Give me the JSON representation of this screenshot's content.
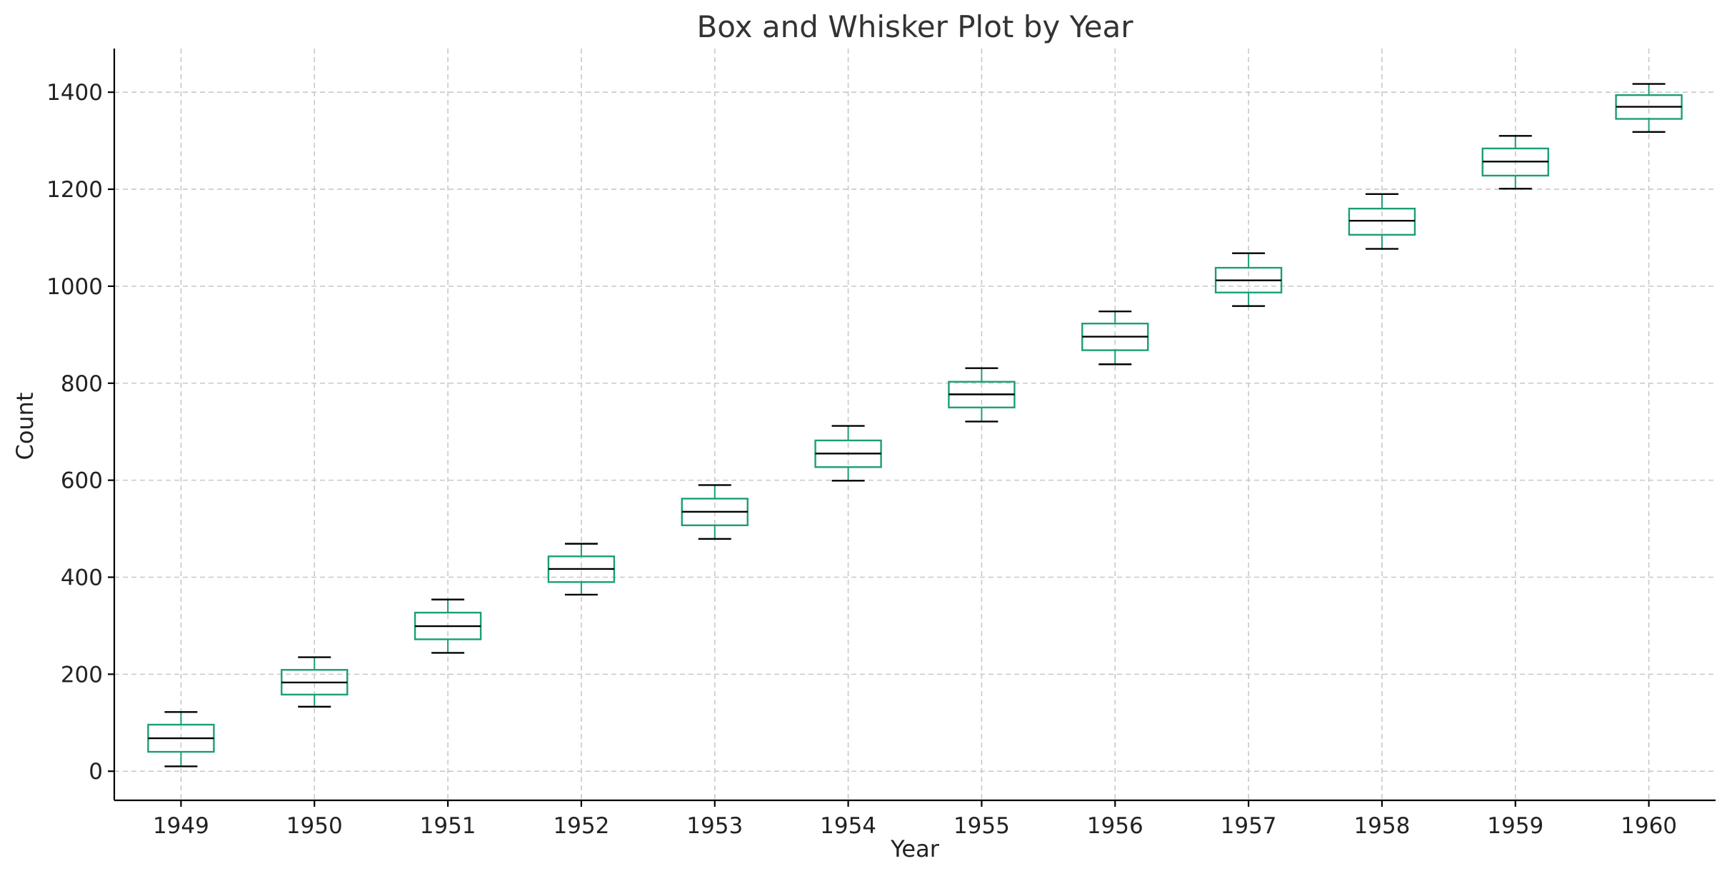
{
  "chart_data": {
    "type": "box",
    "title": "Box and Whisker Plot by Year",
    "xlabel": "Year",
    "ylabel": "Count",
    "ylim": [
      -60,
      1490
    ],
    "yticks": [
      0,
      200,
      400,
      600,
      800,
      1000,
      1200,
      1400
    ],
    "grid": true,
    "box_color": "#1a9e77",
    "whisker_color": "#000000",
    "median_color": "#000000",
    "categories": [
      "1949",
      "1950",
      "1951",
      "1952",
      "1953",
      "1954",
      "1955",
      "1956",
      "1957",
      "1958",
      "1959",
      "1960"
    ],
    "boxes": [
      {
        "year": "1949",
        "whisker_low": 10,
        "q1": 40,
        "median": 68,
        "q3": 96,
        "whisker_high": 122
      },
      {
        "year": "1950",
        "whisker_low": 133,
        "q1": 158,
        "median": 183,
        "q3": 209,
        "whisker_high": 235
      },
      {
        "year": "1951",
        "whisker_low": 244,
        "q1": 272,
        "median": 299,
        "q3": 327,
        "whisker_high": 354
      },
      {
        "year": "1952",
        "whisker_low": 364,
        "q1": 390,
        "median": 417,
        "q3": 443,
        "whisker_high": 469
      },
      {
        "year": "1953",
        "whisker_low": 479,
        "q1": 507,
        "median": 535,
        "q3": 562,
        "whisker_high": 590
      },
      {
        "year": "1954",
        "whisker_low": 599,
        "q1": 627,
        "median": 655,
        "q3": 682,
        "whisker_high": 712
      },
      {
        "year": "1955",
        "whisker_low": 721,
        "q1": 750,
        "median": 777,
        "q3": 803,
        "whisker_high": 831
      },
      {
        "year": "1956",
        "whisker_low": 839,
        "q1": 868,
        "median": 896,
        "q3": 923,
        "whisker_high": 948
      },
      {
        "year": "1957",
        "whisker_low": 959,
        "q1": 987,
        "median": 1012,
        "q3": 1038,
        "whisker_high": 1068
      },
      {
        "year": "1958",
        "whisker_low": 1077,
        "q1": 1106,
        "median": 1135,
        "q3": 1160,
        "whisker_high": 1190
      },
      {
        "year": "1959",
        "whisker_low": 1201,
        "q1": 1228,
        "median": 1257,
        "q3": 1284,
        "whisker_high": 1310
      },
      {
        "year": "1960",
        "whisker_low": 1318,
        "q1": 1345,
        "median": 1370,
        "q3": 1394,
        "whisker_high": 1417
      }
    ]
  }
}
